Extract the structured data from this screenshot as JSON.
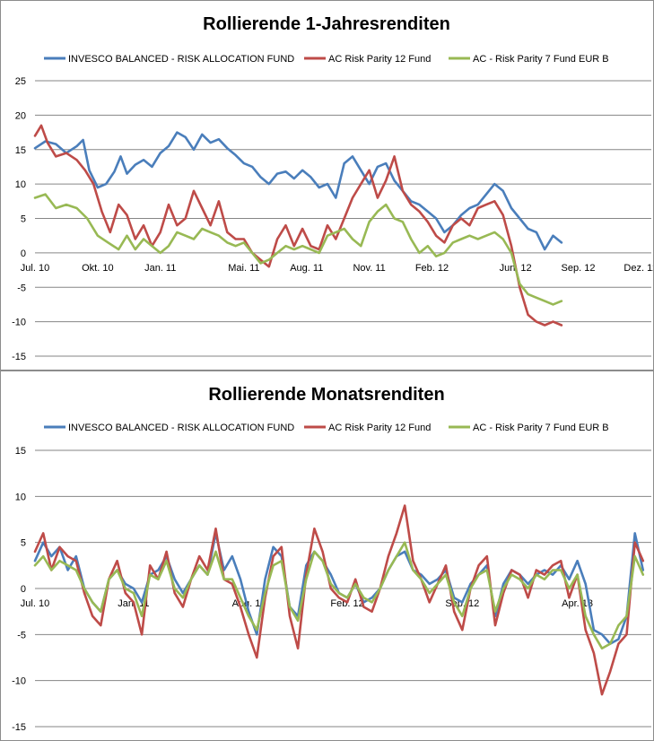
{
  "chart_data": [
    {
      "type": "line",
      "title": "Rollierende 1-Jahresrenditen",
      "xlabel": "",
      "ylabel": "",
      "ylim": [
        -15,
        25
      ],
      "yticks": [
        -15,
        -10,
        -5,
        0,
        5,
        10,
        15,
        20,
        25
      ],
      "grid": true,
      "legend_position": "top",
      "x_range": [
        0,
        29.5
      ],
      "x_ticks": [
        {
          "label": "Jul. 10",
          "x": 0
        },
        {
          "label": "Okt. 10",
          "x": 3
        },
        {
          "label": "Jan. 11",
          "x": 6
        },
        {
          "label": "Mai. 11",
          "x": 10
        },
        {
          "label": "Aug. 11",
          "x": 13
        },
        {
          "label": "Nov. 11",
          "x": 16
        },
        {
          "label": "Feb. 12",
          "x": 19
        },
        {
          "label": "Jun. 12",
          "x": 23
        },
        {
          "label": "Sep. 12",
          "x": 26
        },
        {
          "label": "Dez. 12",
          "x": 29
        }
      ],
      "series": [
        {
          "name": "INVESCO BALANCED - RISK ALLOCATION FUND",
          "color": "#4a7ebb",
          "x": [
            0,
            0.5,
            1,
            1.5,
            2,
            2.3,
            2.6,
            3,
            3.4,
            3.8,
            4.1,
            4.4,
            4.8,
            5.2,
            5.6,
            6,
            6.4,
            6.8,
            7.2,
            7.6,
            8,
            8.4,
            8.8,
            9.2,
            9.6,
            10,
            10.4,
            10.8,
            11.2,
            11.6,
            12,
            12.4,
            12.8,
            13.2,
            13.6,
            14,
            14.4,
            14.8,
            15.2,
            15.6,
            16,
            16.4,
            16.8,
            17.2,
            17.6,
            18,
            18.4,
            18.8,
            19.2,
            19.6,
            20,
            20.4,
            20.8,
            21.2,
            21.6,
            22,
            22.4,
            22.8,
            23.2,
            23.6,
            24,
            24.4,
            24.8,
            25.2
          ],
          "values": [
            15.2,
            16.2,
            15.8,
            14.5,
            15.5,
            16.4,
            12.0,
            9.5,
            10.0,
            11.8,
            14.0,
            11.5,
            12.8,
            13.5,
            12.5,
            14.5,
            15.5,
            17.5,
            16.8,
            15.0,
            17.2,
            16.0,
            16.5,
            15.2,
            14.2,
            13.0,
            12.5,
            11.0,
            10.0,
            11.5,
            11.8,
            10.8,
            12.0,
            11.0,
            9.5,
            10.0,
            8.0,
            13.0,
            14.0,
            12.0,
            10.0,
            12.5,
            13.0,
            10.5,
            9.0,
            7.5,
            7.0,
            6.0,
            5.0,
            3.0,
            4.0,
            5.5,
            6.5,
            7.0,
            8.5,
            10.0,
            9.0,
            6.5,
            5.0,
            3.5,
            3.0,
            0.5,
            2.5,
            1.5
          ]
        },
        {
          "name": "AC Risk Parity 12 Fund",
          "color": "#be4b48",
          "x": [
            0,
            0.3,
            0.6,
            1,
            1.5,
            2,
            2.4,
            2.8,
            3.2,
            3.6,
            4,
            4.4,
            4.8,
            5.2,
            5.6,
            6,
            6.4,
            6.8,
            7.2,
            7.6,
            8,
            8.4,
            8.8,
            9.2,
            9.6,
            10,
            10.4,
            10.8,
            11.2,
            11.6,
            12,
            12.4,
            12.8,
            13.2,
            13.6,
            14,
            14.4,
            14.8,
            15.2,
            15.6,
            16,
            16.4,
            16.8,
            17.2,
            17.6,
            18,
            18.4,
            18.8,
            19.2,
            19.6,
            20,
            20.4,
            20.8,
            21.2,
            21.6,
            22,
            22.4,
            22.8,
            23.2,
            23.6,
            24,
            24.4,
            24.8,
            25.2
          ],
          "values": [
            17.0,
            18.5,
            16.0,
            14.0,
            14.5,
            13.5,
            12.0,
            10.0,
            6.0,
            3.0,
            7.0,
            5.5,
            2.0,
            4.0,
            1.0,
            3.0,
            7.0,
            4.0,
            5.0,
            9.0,
            6.5,
            4.0,
            7.5,
            3.0,
            2.0,
            2.0,
            0.0,
            -1.0,
            -2.0,
            2.0,
            4.0,
            1.0,
            3.5,
            1.0,
            0.5,
            4.0,
            2.0,
            5.0,
            8.0,
            10.0,
            12.0,
            8.0,
            10.5,
            14.0,
            9.0,
            7.0,
            6.0,
            4.5,
            2.5,
            1.5,
            4.0,
            5.0,
            4.0,
            6.5,
            7.0,
            7.5,
            5.5,
            1.0,
            -5.0,
            -9.0,
            -10.0,
            -10.5,
            -10.0,
            -10.5
          ]
        },
        {
          "name": "AC - Risk Parity 7 Fund EUR B",
          "color": "#98b954",
          "x": [
            0,
            0.5,
            1,
            1.5,
            2,
            2.5,
            3,
            3.5,
            4,
            4.4,
            4.8,
            5.2,
            5.6,
            6,
            6.4,
            6.8,
            7.2,
            7.6,
            8,
            8.4,
            8.8,
            9.2,
            9.6,
            10,
            10.4,
            10.8,
            11.2,
            11.6,
            12,
            12.4,
            12.8,
            13.2,
            13.6,
            14,
            14.4,
            14.8,
            15.2,
            15.6,
            16,
            16.4,
            16.8,
            17.2,
            17.6,
            18,
            18.4,
            18.8,
            19.2,
            19.6,
            20,
            20.4,
            20.8,
            21.2,
            21.6,
            22,
            22.4,
            22.8,
            23.2,
            23.6,
            24,
            24.4,
            24.8,
            25.2
          ],
          "values": [
            8.0,
            8.5,
            6.5,
            7.0,
            6.5,
            5.0,
            2.5,
            1.5,
            0.5,
            2.5,
            0.5,
            2.0,
            1.0,
            0.0,
            1.0,
            3.0,
            2.5,
            2.0,
            3.5,
            3.0,
            2.5,
            1.5,
            1.0,
            1.5,
            0.0,
            -1.5,
            -1.0,
            0.0,
            1.0,
            0.5,
            1.0,
            0.5,
            0.0,
            2.5,
            3.0,
            3.5,
            2.0,
            1.0,
            4.5,
            6.0,
            7.0,
            5.0,
            4.5,
            2.0,
            0.0,
            1.0,
            -0.5,
            0.0,
            1.5,
            2.0,
            2.5,
            2.0,
            2.5,
            3.0,
            2.0,
            0.0,
            -4.5,
            -6.0,
            -6.5,
            -7.0,
            -7.5,
            -7.0
          ]
        }
      ]
    },
    {
      "type": "line",
      "title": "Rollierende Monatsrenditen",
      "xlabel": "",
      "ylabel": "",
      "ylim": [
        -15,
        15
      ],
      "yticks": [
        -15,
        -10,
        -5,
        0,
        5,
        10,
        15
      ],
      "grid": true,
      "legend_position": "top",
      "x_range": [
        0,
        37.5
      ],
      "x_ticks": [
        {
          "label": "Jul. 10",
          "x": 0
        },
        {
          "label": "Jan. 11",
          "x": 6
        },
        {
          "label": "Aug. 11",
          "x": 13
        },
        {
          "label": "Feb. 12",
          "x": 19
        },
        {
          "label": "Sep. 12",
          "x": 26
        },
        {
          "label": "Apr. 13",
          "x": 33
        }
      ],
      "series": [
        {
          "name": "INVESCO BALANCED - RISK ALLOCATION FUND",
          "color": "#4a7ebb",
          "x": [
            0,
            0.5,
            1,
            1.5,
            2,
            2.5,
            3,
            3.5,
            4,
            4.5,
            5,
            5.5,
            6,
            6.5,
            7,
            7.5,
            8,
            8.5,
            9,
            9.5,
            10,
            10.5,
            11,
            11.5,
            12,
            12.5,
            13,
            13.5,
            14,
            14.5,
            15,
            15.5,
            16,
            16.5,
            17,
            17.5,
            18,
            18.5,
            19,
            19.5,
            20,
            20.5,
            21,
            21.5,
            22,
            22.5,
            23,
            23.5,
            24,
            24.5,
            25,
            25.5,
            26,
            26.5,
            27,
            27.5,
            28,
            28.5,
            29,
            29.5,
            30,
            30.5,
            31,
            31.5,
            32,
            32.5,
            33,
            33.5,
            34,
            34.5,
            35,
            35.5,
            36,
            36.5,
            37
          ],
          "values": [
            3.0,
            5.0,
            3.5,
            4.5,
            2.0,
            3.5,
            0.0,
            -1.5,
            -2.5,
            1.0,
            2.0,
            0.5,
            0.0,
            -1.5,
            1.5,
            2.0,
            3.5,
            1.0,
            -0.5,
            1.0,
            2.5,
            1.5,
            6.0,
            2.0,
            3.5,
            1.0,
            -2.5,
            -5.0,
            1.0,
            4.5,
            3.5,
            -2.0,
            -3.0,
            2.5,
            4.0,
            3.0,
            1.5,
            -0.5,
            -1.0,
            0.5,
            -1.5,
            -1.0,
            0.0,
            2.0,
            3.5,
            4.0,
            2.0,
            1.5,
            0.5,
            1.0,
            2.0,
            -1.0,
            -1.5,
            0.5,
            1.5,
            2.5,
            -3.0,
            0.5,
            2.0,
            1.5,
            0.5,
            1.5,
            2.0,
            1.5,
            2.5,
            1.0,
            3.0,
            0.5,
            -4.5,
            -5.0,
            -6.0,
            -5.5,
            -3.0,
            6.0,
            2.0
          ]
        },
        {
          "name": "AC Risk Parity 12 Fund",
          "color": "#be4b48",
          "x": [
            0,
            0.5,
            1,
            1.5,
            2,
            2.5,
            3,
            3.5,
            4,
            4.5,
            5,
            5.5,
            6,
            6.5,
            7,
            7.5,
            8,
            8.5,
            9,
            9.5,
            10,
            10.5,
            11,
            11.5,
            12,
            12.5,
            13,
            13.5,
            14,
            14.5,
            15,
            15.5,
            16,
            16.5,
            17,
            17.5,
            18,
            18.5,
            19,
            19.5,
            20,
            20.5,
            21,
            21.5,
            22,
            22.5,
            23,
            23.5,
            24,
            24.5,
            25,
            25.5,
            26,
            26.5,
            27,
            27.5,
            28,
            28.5,
            29,
            29.5,
            30,
            30.5,
            31,
            31.5,
            32,
            32.5,
            33,
            33.5,
            34,
            34.5,
            35,
            35.5,
            36,
            36.5,
            37
          ],
          "values": [
            4.0,
            6.0,
            2.0,
            4.5,
            3.5,
            3.0,
            -0.5,
            -3.0,
            -4.0,
            1.0,
            3.0,
            -0.5,
            -1.5,
            -5.0,
            2.5,
            1.0,
            4.0,
            -0.5,
            -2.0,
            1.0,
            3.5,
            2.0,
            6.5,
            1.0,
            0.5,
            -2.0,
            -5.0,
            -7.5,
            -1.0,
            3.5,
            4.5,
            -3.0,
            -6.5,
            1.5,
            6.5,
            4.0,
            0.0,
            -1.0,
            -1.5,
            1.0,
            -2.0,
            -2.5,
            0.0,
            3.5,
            6.0,
            9.0,
            3.0,
            1.0,
            -1.5,
            0.5,
            2.5,
            -2.5,
            -4.5,
            0.0,
            2.5,
            3.5,
            -4.0,
            -0.5,
            2.0,
            1.5,
            -1.0,
            2.0,
            1.5,
            2.5,
            3.0,
            -1.0,
            1.5,
            -4.5,
            -7.0,
            -11.5,
            -9.0,
            -6.0,
            -5.0,
            5.0,
            3.0
          ]
        },
        {
          "name": "AC - Risk Parity 7 Fund EUR B",
          "color": "#98b954",
          "x": [
            0,
            0.5,
            1,
            1.5,
            2,
            2.5,
            3,
            3.5,
            4,
            4.5,
            5,
            5.5,
            6,
            6.5,
            7,
            7.5,
            8,
            8.5,
            9,
            9.5,
            10,
            10.5,
            11,
            11.5,
            12,
            12.5,
            13,
            13.5,
            14,
            14.5,
            15,
            15.5,
            16,
            16.5,
            17,
            17.5,
            18,
            18.5,
            19,
            19.5,
            20,
            20.5,
            21,
            21.5,
            22,
            22.5,
            23,
            23.5,
            24,
            24.5,
            25,
            25.5,
            26,
            26.5,
            27,
            27.5,
            28,
            28.5,
            29,
            29.5,
            30,
            30.5,
            31,
            31.5,
            32,
            32.5,
            33,
            33.5,
            34,
            34.5,
            35,
            35.5,
            36,
            36.5,
            37
          ],
          "values": [
            2.5,
            3.5,
            2.0,
            3.0,
            2.5,
            2.0,
            0.0,
            -1.5,
            -2.5,
            1.0,
            2.0,
            0.0,
            -0.5,
            -3.0,
            1.5,
            1.0,
            3.0,
            0.0,
            -1.0,
            1.0,
            2.5,
            1.5,
            4.0,
            1.0,
            1.0,
            -1.0,
            -3.0,
            -4.5,
            -0.5,
            2.5,
            3.0,
            -2.0,
            -3.5,
            1.0,
            4.0,
            3.0,
            0.5,
            -0.5,
            -1.0,
            0.5,
            -1.0,
            -1.5,
            0.0,
            2.0,
            3.5,
            5.0,
            2.0,
            1.0,
            -0.5,
            0.5,
            1.5,
            -1.5,
            -3.0,
            0.0,
            1.5,
            2.0,
            -2.5,
            0.0,
            1.5,
            1.0,
            0.0,
            1.5,
            1.0,
            2.0,
            2.0,
            0.0,
            1.5,
            -3.0,
            -5.0,
            -6.5,
            -6.0,
            -4.0,
            -3.0,
            3.5,
            1.5
          ]
        }
      ]
    }
  ]
}
